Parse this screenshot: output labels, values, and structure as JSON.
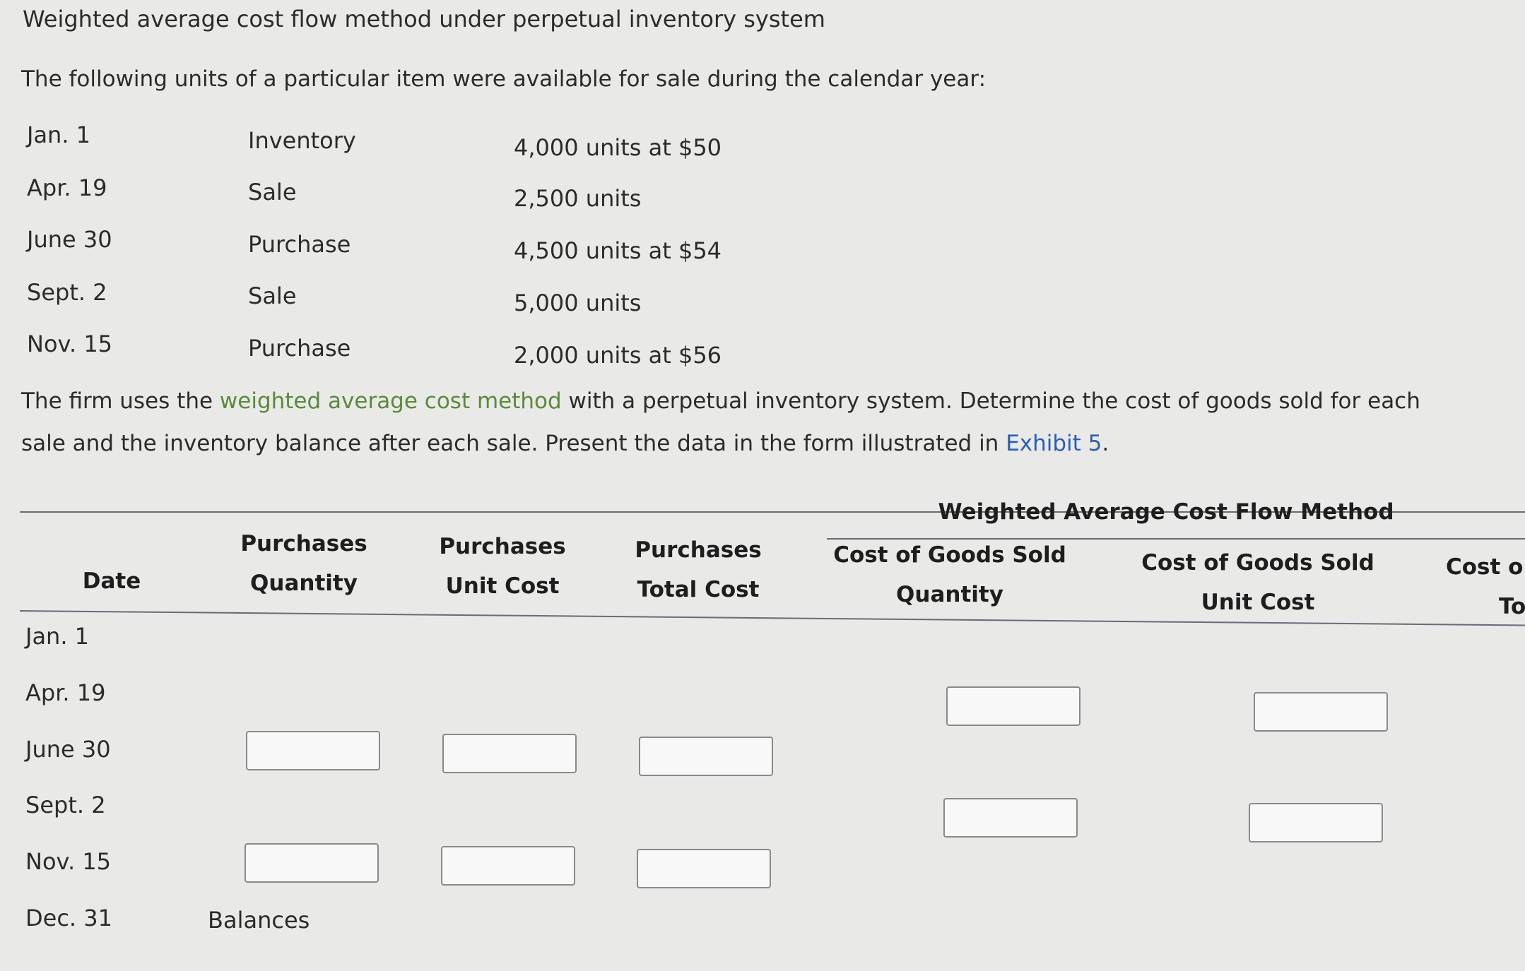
{
  "title": "Weighted average cost flow method under perpetual inventory system",
  "intro": "The following units of a particular item were available for sale during the calendar year:",
  "transactions": [
    {
      "date": "Jan. 1",
      "type": "Inventory",
      "detail": "4,000 units at $50"
    },
    {
      "date": "Apr. 19",
      "type": "Sale",
      "detail": "2,500 units"
    },
    {
      "date": "June 30",
      "type": "Purchase",
      "detail": "4,500 units at $54"
    },
    {
      "date": "Sept. 2",
      "type": "Sale",
      "detail": "5,000 units"
    },
    {
      "date": "Nov. 15",
      "type": "Purchase",
      "detail": "2,000 units at $56"
    }
  ],
  "instructions": {
    "part1": "The firm uses the ",
    "link1": "weighted average cost method",
    "part2": " with a perpetual inventory system. Determine the cost of goods sold for each",
    "line2a": "sale and the inventory balance after each sale. Present the data in the form illustrated in ",
    "link2": "Exhibit 5",
    "line2b": "."
  },
  "table": {
    "title": "Weighted Average Cost Flow Method",
    "headers": {
      "date": "Date",
      "pq1": "Purchases",
      "pq2": "Quantity",
      "pu1": "Purchases",
      "pu2": "Unit Cost",
      "pt1": "Purchases",
      "pt2": "Total Cost",
      "cq1": "Cost of Goods Sold",
      "cq2": "Quantity",
      "cu1": "Cost of Goods Sold",
      "cu2": "Unit Cost",
      "ct1": "Cost o",
      "ct2": "To"
    },
    "rows": [
      "Jan. 1",
      "Apr. 19",
      "June 30",
      "Sept. 2",
      "Nov. 15",
      "Dec. 31"
    ],
    "balances_label": "Balances",
    "inputs": {
      "apr19_cogs_qty": "",
      "apr19_cogs_unit": "",
      "jun30_qty": "",
      "jun30_unit": "",
      "jun30_total": "",
      "sep2_cogs_qty": "",
      "sep2_cogs_unit": "",
      "nov15_qty": "",
      "nov15_unit": "",
      "nov15_total": ""
    }
  }
}
